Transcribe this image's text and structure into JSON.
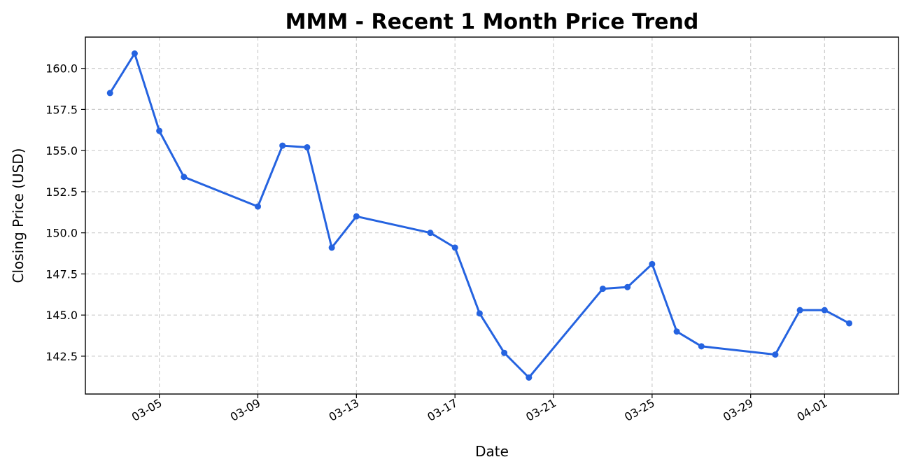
{
  "chart_data": {
    "type": "line",
    "title": "MMM - Recent 1 Month Price Trend",
    "xlabel": "Date",
    "ylabel": "Closing Price (USD)",
    "x_tick_labels": [
      "03-05",
      "03-09",
      "03-13",
      "03-17",
      "03-21",
      "03-25",
      "03-29",
      "04-01"
    ],
    "x_tick_dates": [
      "03-05",
      "03-09",
      "03-13",
      "03-17",
      "03-21",
      "03-25",
      "03-29",
      "04-01"
    ],
    "y_ticks": [
      142.5,
      145.0,
      147.5,
      150.0,
      152.5,
      155.0,
      157.5,
      160.0
    ],
    "y_tick_labels": [
      "142.5",
      "145.0",
      "147.5",
      "150.0",
      "152.5",
      "155.0",
      "157.5",
      "160.0"
    ],
    "xlim": [
      "03-02",
      "04-04"
    ],
    "ylim": [
      140.2,
      161.9
    ],
    "grid": true,
    "color": "#2563e0",
    "series": [
      {
        "x": [
          "03-03",
          "03-04",
          "03-05",
          "03-06",
          "03-09",
          "03-10",
          "03-11",
          "03-12",
          "03-13",
          "03-16",
          "03-17",
          "03-18",
          "03-19",
          "03-20",
          "03-23",
          "03-24",
          "03-25",
          "03-26",
          "03-27",
          "03-30",
          "03-31",
          "04-01",
          "04-02"
        ],
        "values": [
          158.5,
          160.9,
          156.2,
          153.4,
          151.6,
          155.3,
          155.2,
          149.1,
          151.0,
          150.0,
          149.1,
          145.1,
          142.7,
          141.2,
          146.6,
          146.7,
          148.1,
          144.0,
          143.1,
          142.6,
          145.3,
          145.3,
          144.5
        ]
      }
    ]
  }
}
